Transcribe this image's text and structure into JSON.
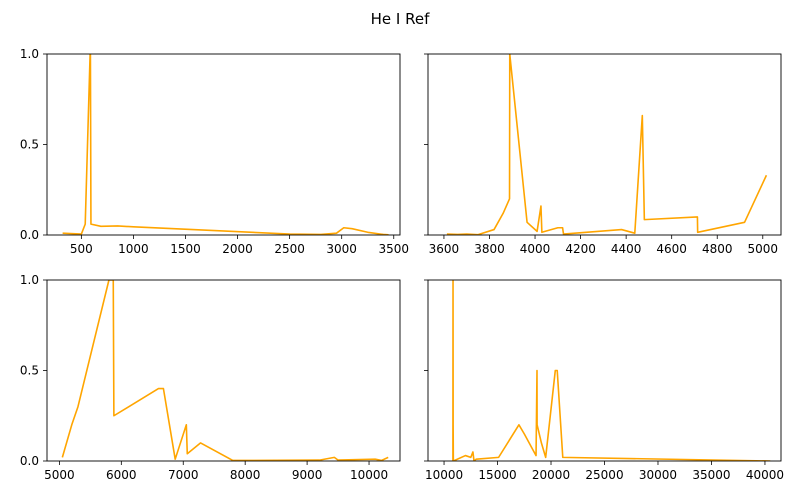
{
  "figure": {
    "title": "He I Ref",
    "line_color": "#FFA500",
    "background": "#FFFFFF"
  },
  "chart_data": [
    {
      "type": "line",
      "title": "",
      "xlabel": "",
      "ylabel": "",
      "xlim": [
        170,
        3560
      ],
      "ylim": [
        0,
        1
      ],
      "xticks": [
        500,
        1000,
        1500,
        2000,
        2500,
        3000,
        3500
      ],
      "xtick_labels": [
        "500",
        "1000",
        "1500",
        "2000",
        "2500",
        "3000",
        "3500"
      ],
      "yticks": [
        0,
        0.5,
        1
      ],
      "ytick_labels": [
        "0.0",
        "0.5",
        "1.0"
      ],
      "show_y_tick_labels": true,
      "grid": false,
      "series": [
        {
          "x": [
            320,
            500,
            537,
            584,
            587,
            592,
            688,
            850,
            1000,
            2500,
            2800,
            2950,
            3020,
            3100,
            3250,
            3400,
            3450
          ],
          "y": [
            0.01,
            0.005,
            0.06,
            1.0,
            1.0,
            0.06,
            0.048,
            0.05,
            0.045,
            0.005,
            0.003,
            0.01,
            0.04,
            0.035,
            0.015,
            0.003,
            0.001
          ]
        }
      ]
    },
    {
      "type": "line",
      "title": "",
      "xlabel": "",
      "ylabel": "",
      "xlim": [
        3530,
        5080
      ],
      "ylim": [
        0,
        1
      ],
      "xticks": [
        3600,
        3800,
        4000,
        4200,
        4400,
        4600,
        4800,
        5000
      ],
      "xtick_labels": [
        "3600",
        "3800",
        "4000",
        "4200",
        "4400",
        "4600",
        "4800",
        "5000"
      ],
      "yticks": [
        0,
        0.5,
        1
      ],
      "ytick_labels": [
        "0.0",
        "0.5",
        "1.0"
      ],
      "show_y_tick_labels": false,
      "grid": false,
      "series": [
        {
          "x": [
            3613,
            3660,
            3700,
            3750,
            3820,
            3860,
            3888,
            3889,
            3965,
            4009,
            4026,
            4030,
            4100,
            4121,
            4125,
            4380,
            4438,
            4471,
            4480,
            4713,
            4714,
            4920,
            5016
          ],
          "y": [
            0.005,
            0.003,
            0.005,
            0.002,
            0.03,
            0.12,
            0.2,
            1.0,
            0.07,
            0.02,
            0.16,
            0.015,
            0.04,
            0.04,
            0.005,
            0.03,
            0.01,
            0.66,
            0.085,
            0.1,
            0.015,
            0.07,
            0.33
          ]
        }
      ]
    },
    {
      "type": "line",
      "title": "",
      "xlabel": "",
      "ylabel": "",
      "xlim": [
        4800,
        10500
      ],
      "ylim": [
        0,
        1
      ],
      "xticks": [
        5000,
        6000,
        7000,
        8000,
        9000,
        10000
      ],
      "xtick_labels": [
        "5000",
        "6000",
        "7000",
        "8000",
        "9000",
        "10000"
      ],
      "yticks": [
        0,
        0.5,
        1
      ],
      "ytick_labels": [
        "0.0",
        "0.5",
        "1.0"
      ],
      "show_y_tick_labels": true,
      "grid": false,
      "series": [
        {
          "x": [
            5048,
            5200,
            5300,
            5800,
            5870,
            5880,
            6600,
            6680,
            6870,
            7050,
            7065,
            7280,
            7800,
            9200,
            9440,
            9500,
            10100,
            10200,
            10310
          ],
          "y": [
            0.02,
            0.2,
            0.3,
            1.0,
            1.0,
            0.25,
            0.4,
            0.4,
            0.01,
            0.2,
            0.04,
            0.1,
            0.003,
            0.005,
            0.02,
            0.005,
            0.01,
            0.003,
            0.02
          ]
        }
      ]
    },
    {
      "type": "line",
      "title": "",
      "xlabel": "",
      "ylabel": "",
      "xlim": [
        8500,
        41500
      ],
      "ylim": [
        0,
        1
      ],
      "xticks": [
        10000,
        15000,
        20000,
        25000,
        30000,
        35000,
        40000
      ],
      "xtick_labels": [
        "10000",
        "15000",
        "20000",
        "25000",
        "30000",
        "35000",
        "40000"
      ],
      "yticks": [
        0,
        0.5,
        1
      ],
      "ytick_labels": [
        "0.0",
        "0.5",
        "1.0"
      ],
      "show_y_tick_labels": false,
      "grid": false,
      "series": [
        {
          "x": [
            10830,
            10840,
            10850,
            10870,
            12000,
            12500,
            12700,
            12800,
            13000,
            15100,
            17000,
            17500,
            18600,
            18690,
            18700,
            19100,
            19500,
            20400,
            20580,
            21100,
            21130,
            40500
          ],
          "y": [
            0.0,
            1.0,
            0.2,
            0.0,
            0.03,
            0.02,
            0.05,
            0.0,
            0.01,
            0.02,
            0.2,
            0.15,
            0.03,
            0.5,
            0.2,
            0.1,
            0.02,
            0.5,
            0.5,
            0.02,
            0.02,
            0.0
          ]
        }
      ]
    }
  ]
}
